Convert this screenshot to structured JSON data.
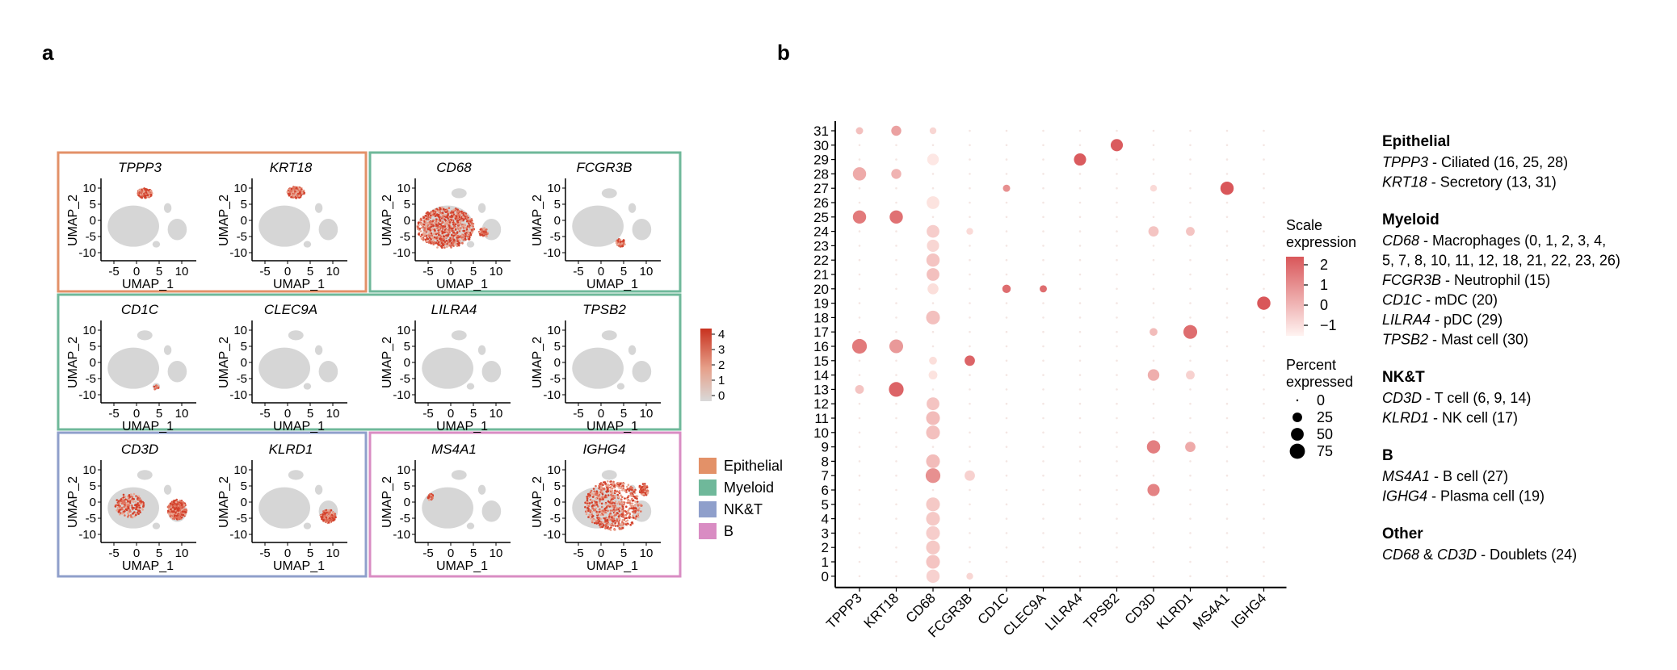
{
  "panel_a": {
    "letter": "a",
    "x_axis_label": "UMAP_1",
    "y_axis_label": "UMAP_2",
    "x_ticks": [
      "-5",
      "0",
      "5",
      "10"
    ],
    "y_ticks": [
      "10",
      "5",
      "0",
      "-5",
      "-10"
    ],
    "umap_panels": [
      "TPPP3",
      "KRT18",
      "CD68",
      "FCGR3B",
      "CD1C",
      "CLEC9A",
      "LILRA4",
      "TPSB2",
      "CD3D",
      "KLRD1",
      "MS4A1",
      "IGHG4"
    ],
    "colorbar_ticks": [
      "4",
      "3",
      "2",
      "1",
      "0"
    ],
    "group_legend": [
      {
        "label": "Epithelial",
        "color": "#e39168"
      },
      {
        "label": "Myeloid",
        "color": "#6fb89a"
      },
      {
        "label": "NK&T",
        "color": "#8f9fcb"
      },
      {
        "label": "B",
        "color": "#d98cc3"
      }
    ]
  },
  "chart_data": {
    "type": "scatter",
    "subtype": "dot-plot",
    "panel_letter": "b",
    "genes": [
      "TPPP3",
      "KRT18",
      "CD68",
      "FCGR3B",
      "CD1C",
      "CLEC9A",
      "LILRA4",
      "TPSB2",
      "CD3D",
      "KLRD1",
      "MS4A1",
      "IGHG4"
    ],
    "clusters": [
      "0",
      "1",
      "2",
      "3",
      "4",
      "5",
      "6",
      "7",
      "8",
      "9",
      "10",
      "11",
      "12",
      "13",
      "14",
      "15",
      "16",
      "17",
      "18",
      "19",
      "20",
      "21",
      "22",
      "23",
      "24",
      "25",
      "26",
      "27",
      "28",
      "29",
      "30",
      "31"
    ],
    "color_legend_title": "Scale expression",
    "color_ticks": [
      "2",
      "1",
      "0",
      "−1"
    ],
    "size_legend_title": "Percent expressed",
    "size_ticks": [
      "0",
      "25",
      "50",
      "75"
    ],
    "points": [
      {
        "gene": "TPPP3",
        "cluster": 31,
        "pct": 12,
        "expr": 0.1
      },
      {
        "gene": "TPPP3",
        "cluster": 28,
        "pct": 55,
        "expr": 0.6
      },
      {
        "gene": "TPPP3",
        "cluster": 25,
        "pct": 55,
        "expr": 1.7
      },
      {
        "gene": "TPPP3",
        "cluster": 16,
        "pct": 70,
        "expr": 1.7
      },
      {
        "gene": "TPPP3",
        "cluster": 13,
        "pct": 20,
        "expr": 0.0
      },
      {
        "gene": "KRT18",
        "cluster": 31,
        "pct": 28,
        "expr": 0.8
      },
      {
        "gene": "KRT18",
        "cluster": 28,
        "pct": 28,
        "expr": 0.4
      },
      {
        "gene": "KRT18",
        "cluster": 25,
        "pct": 55,
        "expr": 1.9
      },
      {
        "gene": "KRT18",
        "cluster": 16,
        "pct": 60,
        "expr": 1.0
      },
      {
        "gene": "KRT18",
        "cluster": 13,
        "pct": 70,
        "expr": 2.2
      },
      {
        "gene": "CD68",
        "cluster": 31,
        "pct": 10,
        "expr": -0.4
      },
      {
        "gene": "CD68",
        "cluster": 29,
        "pct": 40,
        "expr": -0.8
      },
      {
        "gene": "CD68",
        "cluster": 26,
        "pct": 50,
        "expr": -0.7
      },
      {
        "gene": "CD68",
        "cluster": 24,
        "pct": 50,
        "expr": -0.2
      },
      {
        "gene": "CD68",
        "cluster": 23,
        "pct": 45,
        "expr": -0.4
      },
      {
        "gene": "CD68",
        "cluster": 22,
        "pct": 55,
        "expr": 0.0
      },
      {
        "gene": "CD68",
        "cluster": 21,
        "pct": 50,
        "expr": 0.1
      },
      {
        "gene": "CD68",
        "cluster": 20,
        "pct": 35,
        "expr": -0.6
      },
      {
        "gene": "CD68",
        "cluster": 18,
        "pct": 60,
        "expr": 0.1
      },
      {
        "gene": "CD68",
        "cluster": 15,
        "pct": 15,
        "expr": -0.6
      },
      {
        "gene": "CD68",
        "cluster": 14,
        "pct": 20,
        "expr": -0.7
      },
      {
        "gene": "CD68",
        "cluster": 12,
        "pct": 50,
        "expr": 0.0
      },
      {
        "gene": "CD68",
        "cluster": 11,
        "pct": 60,
        "expr": 0.2
      },
      {
        "gene": "CD68",
        "cluster": 10,
        "pct": 60,
        "expr": 0.1
      },
      {
        "gene": "CD68",
        "cluster": 8,
        "pct": 60,
        "expr": 0.2
      },
      {
        "gene": "CD68",
        "cluster": 7,
        "pct": 70,
        "expr": 1.2
      },
      {
        "gene": "CD68",
        "cluster": 5,
        "pct": 60,
        "expr": -0.1
      },
      {
        "gene": "CD68",
        "cluster": 4,
        "pct": 60,
        "expr": -0.1
      },
      {
        "gene": "CD68",
        "cluster": 3,
        "pct": 60,
        "expr": -0.2
      },
      {
        "gene": "CD68",
        "cluster": 2,
        "pct": 60,
        "expr": -0.1
      },
      {
        "gene": "CD68",
        "cluster": 1,
        "pct": 60,
        "expr": 0.0
      },
      {
        "gene": "CD68",
        "cluster": 0,
        "pct": 55,
        "expr": -0.3
      },
      {
        "gene": "FCGR3B",
        "cluster": 24,
        "pct": 10,
        "expr": -0.5
      },
      {
        "gene": "FCGR3B",
        "cluster": 15,
        "pct": 30,
        "expr": 2.2
      },
      {
        "gene": "FCGR3B",
        "cluster": 7,
        "pct": 30,
        "expr": -0.3
      },
      {
        "gene": "FCGR3B",
        "cluster": 0,
        "pct": 10,
        "expr": -0.4
      },
      {
        "gene": "CD1C",
        "cluster": 27,
        "pct": 12,
        "expr": 1.2
      },
      {
        "gene": "CD1C",
        "cluster": 20,
        "pct": 18,
        "expr": 2.0
      },
      {
        "gene": "CLEC9A",
        "cluster": 20,
        "pct": 12,
        "expr": 2.0
      },
      {
        "gene": "LILRA4",
        "cluster": 29,
        "pct": 45,
        "expr": 2.4
      },
      {
        "gene": "TPSB2",
        "cluster": 30,
        "pct": 45,
        "expr": 2.4
      },
      {
        "gene": "CD3D",
        "cluster": 27,
        "pct": 10,
        "expr": -0.5
      },
      {
        "gene": "CD3D",
        "cluster": 24,
        "pct": 30,
        "expr": 0.0
      },
      {
        "gene": "CD3D",
        "cluster": 17,
        "pct": 15,
        "expr": 0.2
      },
      {
        "gene": "CD3D",
        "cluster": 14,
        "pct": 40,
        "expr": 0.5
      },
      {
        "gene": "CD3D",
        "cluster": 9,
        "pct": 55,
        "expr": 1.6
      },
      {
        "gene": "CD3D",
        "cluster": 6,
        "pct": 45,
        "expr": 1.5
      },
      {
        "gene": "KLRD1",
        "cluster": 24,
        "pct": 20,
        "expr": 0.0
      },
      {
        "gene": "KLRD1",
        "cluster": 17,
        "pct": 60,
        "expr": 2.0
      },
      {
        "gene": "KLRD1",
        "cluster": 14,
        "pct": 20,
        "expr": -0.3
      },
      {
        "gene": "KLRD1",
        "cluster": 9,
        "pct": 30,
        "expr": 0.6
      },
      {
        "gene": "MS4A1",
        "cluster": 27,
        "pct": 55,
        "expr": 2.5
      },
      {
        "gene": "IGHG4",
        "cluster": 19,
        "pct": 55,
        "expr": 2.5
      }
    ]
  },
  "annotations": {
    "groups": [
      {
        "heading": "Epithelial",
        "lines": [
          [
            {
              "t": "TPPP3",
              "i": true
            },
            {
              "t": " - Ciliated (16, 25, 28)",
              "i": false
            }
          ],
          [
            {
              "t": "KRT18",
              "i": true
            },
            {
              "t": " - Secretory (13, 31)",
              "i": false
            }
          ]
        ]
      },
      {
        "heading": "Myeloid",
        "lines": [
          [
            {
              "t": "CD68",
              "i": true
            },
            {
              "t": " - Macrophages (0, 1, 2, 3, 4,",
              "i": false
            }
          ],
          [
            {
              "t": "5, 7, 8, 10, 11, 12, 18, 21, 22, 23, 26)",
              "i": false
            }
          ],
          [
            {
              "t": "FCGR3B",
              "i": true
            },
            {
              "t": " - Neutrophil (15)",
              "i": false
            }
          ],
          [
            {
              "t": "CD1C",
              "i": true
            },
            {
              "t": " - mDC (20)",
              "i": false
            }
          ],
          [
            {
              "t": "LILRA4",
              "i": true
            },
            {
              "t": " - pDC (29)",
              "i": false
            }
          ],
          [
            {
              "t": "TPSB2",
              "i": true
            },
            {
              "t": " - Mast cell (30)",
              "i": false
            }
          ]
        ]
      },
      {
        "heading": "NK&T",
        "lines": [
          [
            {
              "t": "CD3D",
              "i": true
            },
            {
              "t": " - T cell (6, 9, 14)",
              "i": false
            }
          ],
          [
            {
              "t": "KLRD1",
              "i": true
            },
            {
              "t": " - NK cell (17)",
              "i": false
            }
          ]
        ]
      },
      {
        "heading": "B",
        "lines": [
          [
            {
              "t": "MS4A1",
              "i": true
            },
            {
              "t": " - B cell (27)",
              "i": false
            }
          ],
          [
            {
              "t": "IGHG4",
              "i": true
            },
            {
              "t": " - Plasma cell (19)",
              "i": false
            }
          ]
        ]
      },
      {
        "heading": "Other",
        "lines": [
          [
            {
              "t": "CD68",
              "i": true
            },
            {
              "t": " & ",
              "i": false
            },
            {
              "t": "CD3D",
              "i": true
            },
            {
              "t": " - Doublets  (24)",
              "i": false
            }
          ]
        ]
      }
    ]
  },
  "colors": {
    "low_grey": "#d9d9d9",
    "high_red": "#d43c2a",
    "dot_high": "#d9575a",
    "dot_low": "#fff3f1"
  }
}
